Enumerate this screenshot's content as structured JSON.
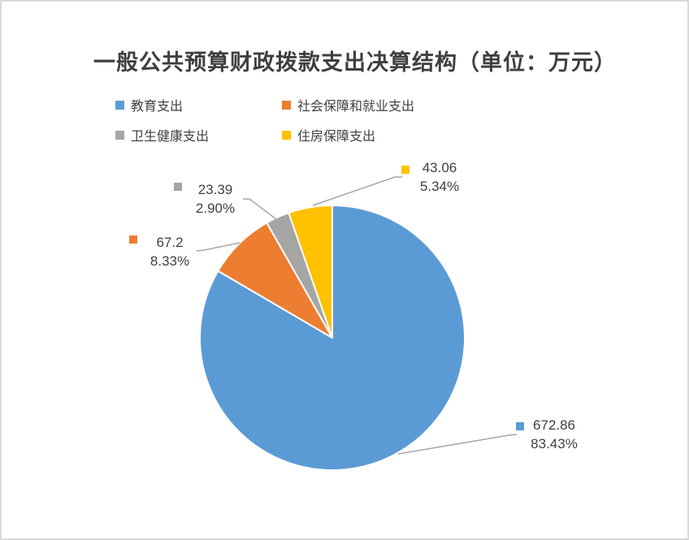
{
  "title": "一般公共预算财政拨款支出决算结构（单位：万元）",
  "chart_data": {
    "type": "pie",
    "title": "一般公共预算财政拨款支出决算结构（单位：万元）",
    "unit": "万元",
    "categories": [
      "教育支出",
      "社会保障和就业支出",
      "卫生健康支出",
      "住房保障支出"
    ],
    "values": [
      672.86,
      67.2,
      23.39,
      43.06
    ],
    "value_labels": [
      "672.86",
      "67.2",
      "23.39",
      "43.06"
    ],
    "percent_labels": [
      "83.43%",
      "8.33%",
      "2.90%",
      "5.34%"
    ],
    "colors": [
      "#5B9BD5",
      "#ED7D31",
      "#A5A5A5",
      "#FFC000"
    ],
    "slice_border_color": "#FFFFFF",
    "leader_line_color": "#A6A6A6",
    "text_color": "#404040",
    "title_color": "#3F3F3F",
    "canvas_border_color": "#D9D9D9",
    "start_angle_deg": 0,
    "direction": "clockwise",
    "legend_position": "top-left"
  }
}
